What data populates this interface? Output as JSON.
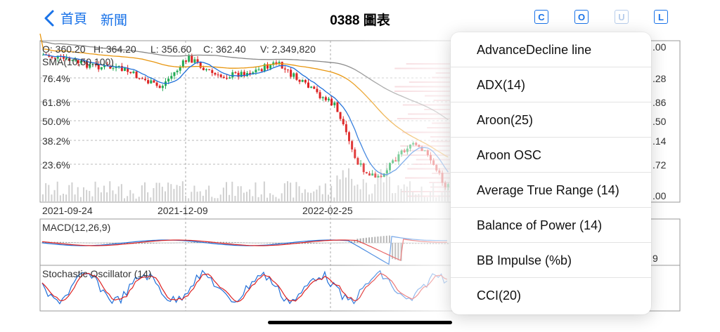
{
  "nav": {
    "back_label": "首頁",
    "news_label": "新聞",
    "title": "0388 圖表",
    "buttons": [
      "C",
      "O",
      "U",
      "L"
    ]
  },
  "ohlc": {
    "open": "O: 360.20",
    "high": "H: 364.20",
    "low": "L: 356.60",
    "close": "C: 362.40",
    "volume": "V: 2,349,820"
  },
  "sma_label": "SMA(10,50,100)",
  "fib_labels": [
    "76.4%",
    "61.8%",
    "50.0%",
    "38.2%",
    "23.6%"
  ],
  "price_axis": [
    ".00",
    ".28",
    ".86",
    ".50",
    ".14",
    ".72",
    ".00"
  ],
  "date_labels": [
    "2021-09-24",
    "2021-12-09",
    "2022-02-25"
  ],
  "macd_label": "MACD(12,26,9)",
  "macd_right": "9",
  "stoch_label": "Stochastic Oscillator (14)",
  "menu": {
    "items": [
      "AdvanceDecline line",
      "ADX(14)",
      "Aroon(25)",
      "Aroon OSC",
      "Average True Range (14)",
      "Balance of Power (14)",
      "BB Impulse (%b)",
      "CCI(20)"
    ]
  },
  "colors": {
    "accent": "#1a73e8",
    "up": "#22aa55",
    "down": "#dd2222",
    "sma10": "#1e6fd9",
    "sma50": "#e8960f",
    "sma100": "#888888"
  }
}
